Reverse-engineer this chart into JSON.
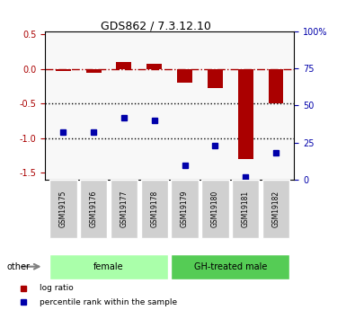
{
  "title": "GDS862 / 7.3.12.10",
  "samples": [
    "GSM19175",
    "GSM19176",
    "GSM19177",
    "GSM19178",
    "GSM19179",
    "GSM19180",
    "GSM19181",
    "GSM19182"
  ],
  "log_ratio": [
    -0.03,
    -0.05,
    0.1,
    0.07,
    -0.2,
    -0.27,
    -1.3,
    -0.5
  ],
  "percentile_rank": [
    32,
    32,
    42,
    40,
    10,
    23,
    2,
    18
  ],
  "groups": [
    {
      "label": "female",
      "indices": [
        0,
        1,
        2,
        3
      ],
      "color": "#aaffaa"
    },
    {
      "label": "GH-treated male",
      "indices": [
        4,
        5,
        6,
        7
      ],
      "color": "#55cc55"
    }
  ],
  "bar_color": "#aa0000",
  "dot_color": "#0000aa",
  "ylim_left": [
    -1.6,
    0.55
  ],
  "ylim_right": [
    0,
    100
  ],
  "yticks_left": [
    -1.5,
    -1.0,
    -0.5,
    0.0,
    0.5
  ],
  "yticks_right": [
    0,
    25,
    50,
    75,
    100
  ],
  "ytick_right_labels": [
    "0",
    "25",
    "50",
    "75",
    "100%"
  ],
  "dotted_lines": [
    -0.5,
    -1.0
  ],
  "background_color": "#ffffff",
  "legend_logratio": "log ratio",
  "legend_percentile": "percentile rank within the sample",
  "other_label": "other"
}
